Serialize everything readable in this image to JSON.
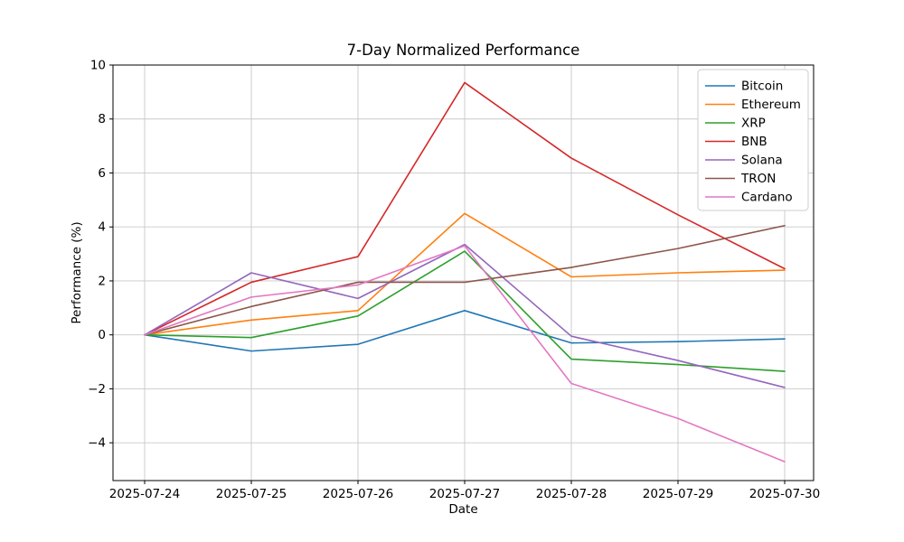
{
  "figure": {
    "title": "7-Day Normalized Performance",
    "xlabel": "Date",
    "ylabel": "Performance (%)"
  },
  "chart_data": {
    "type": "line",
    "title": "7-Day Normalized Performance",
    "xlabel": "Date",
    "ylabel": "Performance (%)",
    "x": [
      "2025-07-24",
      "2025-07-25",
      "2025-07-26",
      "2025-07-27",
      "2025-07-28",
      "2025-07-29",
      "2025-07-30"
    ],
    "series": [
      {
        "name": "Bitcoin",
        "color": "#1f77b4",
        "values": [
          0,
          -0.6,
          -0.35,
          0.9,
          -0.3,
          -0.25,
          -0.15
        ]
      },
      {
        "name": "Ethereum",
        "color": "#ff7f0e",
        "values": [
          0,
          0.55,
          0.9,
          4.5,
          2.15,
          2.3,
          2.4
        ]
      },
      {
        "name": "XRP",
        "color": "#2ca02c",
        "values": [
          0,
          -0.1,
          0.7,
          3.1,
          -0.9,
          -1.1,
          -1.35
        ]
      },
      {
        "name": "BNB",
        "color": "#d62728",
        "values": [
          0,
          1.95,
          2.9,
          9.35,
          6.55,
          4.45,
          2.45
        ]
      },
      {
        "name": "Solana",
        "color": "#9467bd",
        "values": [
          0,
          2.3,
          1.35,
          3.35,
          -0.05,
          -0.95,
          -1.95
        ]
      },
      {
        "name": "TRON",
        "color": "#8c564b",
        "values": [
          0,
          1.05,
          1.95,
          1.95,
          2.5,
          3.2,
          4.05
        ]
      },
      {
        "name": "Cardano",
        "color": "#e377c2",
        "values": [
          0,
          1.4,
          1.85,
          3.3,
          -1.8,
          -3.1,
          -4.7
        ]
      }
    ],
    "yticks": [
      -4,
      -2,
      0,
      2,
      4,
      6,
      8,
      10
    ],
    "ylim": [
      -5.4,
      10
    ],
    "grid": true,
    "grid_color": "#c9c9c9",
    "axis_color": "#000000",
    "background": "#ffffff",
    "legend_position": "upper right",
    "legend_labels": [
      "Bitcoin",
      "Ethereum",
      "XRP",
      "BNB",
      "Solana",
      "TRON",
      "Cardano"
    ]
  }
}
